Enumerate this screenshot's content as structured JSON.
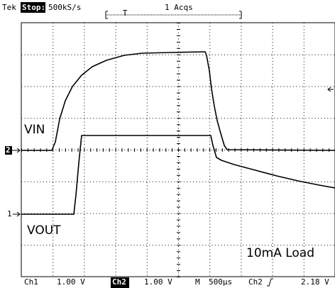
{
  "header": {
    "brand": "Tek",
    "status": "Stop:",
    "sample_rate": "500kS/s",
    "acquisitions": "1 Acqs",
    "trigger_position": "T"
  },
  "traces": [
    {
      "label": "VIN",
      "marker": "2"
    },
    {
      "label": "VOUT",
      "marker": "1"
    }
  ],
  "annotation": "10mA Load",
  "footer": {
    "ch1": "Ch1",
    "ch1_scale": "1.00 V",
    "ch2": "Ch2",
    "ch2_scale": "1.00 V",
    "timebase_label": "M",
    "timebase": "500µs",
    "trigger_source": "Ch2",
    "trigger_level": "2.18 V"
  }
}
